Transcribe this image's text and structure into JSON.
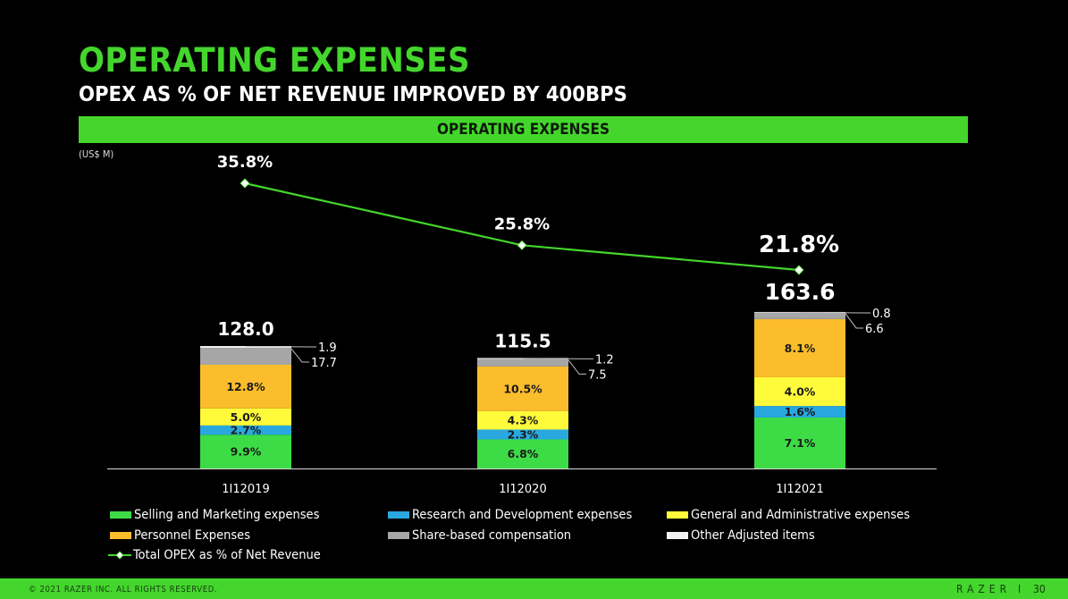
{
  "header": {
    "title": "OPERATING EXPENSES",
    "subtitle": "OPEX AS % OF NET REVENUE IMPROVED BY 400BPS",
    "banner": "OPERATING EXPENSES",
    "units": "(US$ M)"
  },
  "colors": {
    "brand_green": "#44d62c",
    "selling_marketing": "#3ddc47",
    "research_development": "#29a8e0",
    "general_admin": "#fffb3b",
    "personnel": "#fbbd2c",
    "share_based": "#a6a6a6",
    "other_adjusted": "#f2f2f2",
    "line": "#44d62c"
  },
  "chart_data": {
    "type": "bar",
    "stacked": true,
    "title": "OPERATING EXPENSES",
    "ylabel": "(US$ M)",
    "categories": [
      "1H2019",
      "1H2020",
      "1H2021"
    ],
    "category_labels": [
      "1I12019",
      "1I12020",
      "1I12021"
    ],
    "totals": [
      128.0,
      115.5,
      163.6
    ],
    "total_labels": [
      "128.0",
      "115.5",
      "163.6"
    ],
    "series": [
      {
        "name": "Selling and Marketing expenses",
        "key": "selling_marketing",
        "pct_of_revenue": [
          9.9,
          6.8,
          7.1
        ],
        "labels": [
          "9.9%",
          "6.8%",
          "7.1%"
        ]
      },
      {
        "name": "Research and Development expenses",
        "key": "research_development",
        "pct_of_revenue": [
          2.7,
          2.3,
          1.6
        ],
        "labels": [
          "2.7%",
          "2.3%",
          "1.6%"
        ]
      },
      {
        "name": "General and Administrative expenses",
        "key": "general_admin",
        "pct_of_revenue": [
          5.0,
          4.3,
          4.0
        ],
        "labels": [
          "5.0%",
          "4.3%",
          "4.0%"
        ]
      },
      {
        "name": "Personnel Expenses",
        "key": "personnel",
        "pct_of_revenue": [
          12.8,
          10.5,
          8.1
        ],
        "labels": [
          "12.8%",
          "10.5%",
          "8.1%"
        ]
      },
      {
        "name": "Share-based compensation",
        "key": "share_based",
        "values": [
          17.7,
          7.5,
          6.6
        ],
        "labels": [
          "17.7",
          "7.5",
          "6.6"
        ]
      },
      {
        "name": "Other Adjusted items",
        "key": "other_adjusted",
        "values": [
          1.9,
          1.2,
          0.8
        ],
        "labels": [
          "1.9",
          "1.2",
          "0.8"
        ]
      }
    ],
    "line_series": {
      "name": "Total OPEX as % of Net Revenue",
      "values": [
        35.8,
        25.8,
        21.8
      ],
      "labels": [
        "35.8%",
        "25.8%",
        "21.8%"
      ]
    },
    "legend": {
      "position": "bottom",
      "items": [
        "Selling and Marketing expenses",
        "Research and Development expenses",
        "General and Administrative expenses",
        "Personnel Expenses",
        "Share-based compensation",
        "Other Adjusted items",
        "Total OPEX as % of Net Revenue"
      ]
    }
  },
  "footer": {
    "copyright": "© 2021 RAZER INC. ALL RIGHTS RESERVED.",
    "brand": "RAZER",
    "separator": "I",
    "page": "30"
  }
}
